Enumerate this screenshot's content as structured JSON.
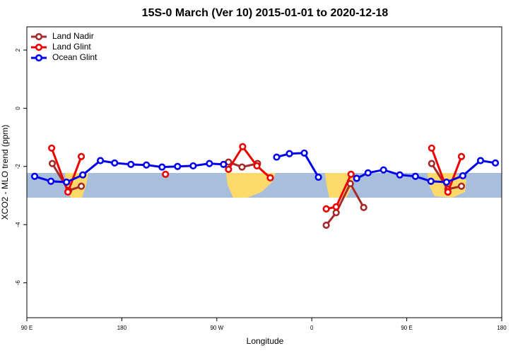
{
  "chart_data": {
    "type": "line",
    "title": "15S-0 March (Ver 10)   2015-01-01 to 2020-12-18",
    "xlabel": "Longitude",
    "ylabel": "XCO2 - MLO trend (ppm)",
    "xlim": [
      90,
      540
    ],
    "ylim": [
      -7.2,
      2.8
    ],
    "xticks": [
      {
        "value": 90,
        "label": "90 E"
      },
      180,
      {
        "value": 270,
        "label": "90 W"
      },
      {
        "value": 360,
        "label": "0"
      },
      {
        "value": 450,
        "label": "90 E"
      },
      {
        "value": 540,
        "label": "180"
      }
    ],
    "yticks": [
      -6,
      -4,
      -2,
      0,
      2
    ],
    "legend": "top-left",
    "series": [
      {
        "name": "Land Nadir",
        "color": "#a52a2a",
        "x": [
          114.1,
          129.6,
          141.6,
          null,
          281.1,
          293.9,
          308.6,
          null,
          373.7,
          383.1,
          396.5,
          409.2,
          null,
          473.6,
          489,
          501.8
        ],
        "values": [
          -1.9,
          -2.83,
          -2.68,
          null,
          -1.85,
          -2.02,
          -1.9,
          null,
          -4.02,
          -3.59,
          -2.59,
          -3.41,
          null,
          -1.9,
          -2.78,
          -2.68
        ]
      },
      {
        "name": "Land Glint",
        "color": "#ee0000",
        "x": [
          113.5,
          128.9,
          141.6,
          null,
          221.4,
          null,
          281.1,
          294.5,
          308,
          320.7,
          null,
          373.7,
          383.1,
          397.2,
          null,
          473.6,
          489,
          501.8
        ],
        "values": [
          -1.37,
          -2.88,
          -1.66,
          null,
          -2.27,
          null,
          -2.1,
          -1.32,
          -1.98,
          -2.39,
          null,
          -3.46,
          -3.39,
          -2.27,
          null,
          -1.37,
          -2.88,
          -1.66
        ]
      },
      {
        "name": "Ocean Glint",
        "color": "#0000ee",
        "x": [
          97.4,
          112.8,
          127.6,
          143,
          159.7,
          173.2,
          188.6,
          203.3,
          218.1,
          232.8,
          247.6,
          263,
          276.4,
          null,
          326.7,
          338.8,
          352.9,
          366.3,
          null,
          402.5,
          413.3,
          428,
          443.4,
          458.2,
          472.9,
          487.7,
          503.1,
          519.9,
          534
        ],
        "values": [
          -2.34,
          -2.51,
          -2.54,
          -2.29,
          -1.8,
          -1.88,
          -1.93,
          -1.95,
          -2.02,
          -2.0,
          -1.98,
          -1.9,
          -1.93,
          null,
          -1.68,
          -1.56,
          -1.54,
          -2.37,
          null,
          -2.41,
          -2.22,
          -2.12,
          -2.29,
          -2.34,
          -2.51,
          -2.54,
          -2.32,
          -1.8,
          -1.88
        ]
      }
    ]
  }
}
